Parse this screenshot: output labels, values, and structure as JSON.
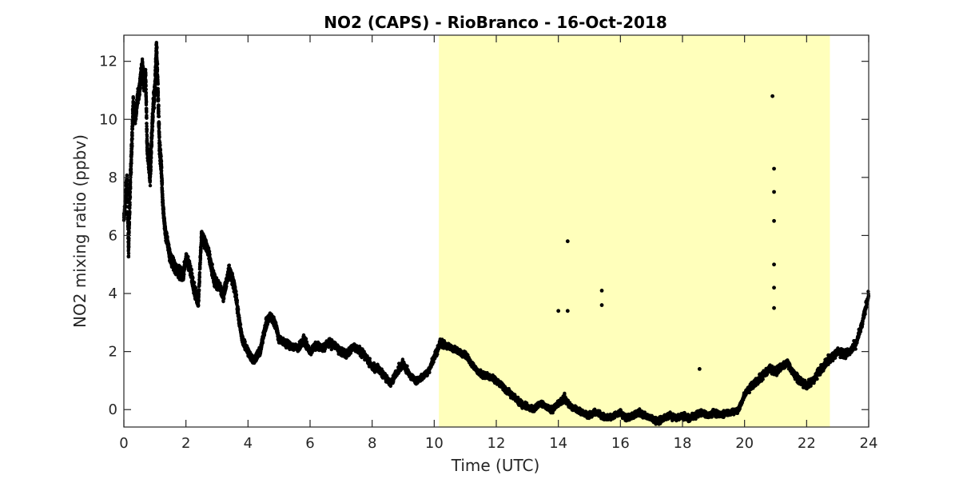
{
  "chart_data": {
    "type": "scatter",
    "title": "NO2 (CAPS) - RioBranco - 16-Oct-2018",
    "xlabel": "Time (UTC)",
    "ylabel": "NO2 mixing ratio (ppbv)",
    "xlim": [
      0,
      24
    ],
    "ylim": [
      -0.6,
      12.9
    ],
    "xticks": [
      0,
      2,
      4,
      6,
      8,
      10,
      12,
      14,
      16,
      18,
      20,
      22,
      24
    ],
    "yticks": [
      0,
      2,
      4,
      6,
      8,
      10,
      12
    ],
    "grid": false,
    "legend": "none",
    "highlight_span": [
      10.15,
      22.75
    ],
    "colors": {
      "points": "#000000",
      "highlight": "#ffffbb",
      "axes": "#262626",
      "background": "#ffffff"
    },
    "series": [
      {
        "x": [
          0.0,
          0.1,
          0.15,
          0.2,
          0.25,
          0.3,
          0.35,
          0.4,
          0.45,
          0.5,
          0.55,
          0.6,
          0.65,
          0.7,
          0.75,
          0.8,
          0.85,
          0.9,
          0.95,
          1.0,
          1.05,
          1.1,
          1.15,
          1.2,
          1.25,
          1.3,
          1.35,
          1.4,
          1.45,
          1.5,
          1.6,
          1.7,
          1.8,
          1.9,
          2.0,
          2.1,
          2.2,
          2.3,
          2.4,
          2.5,
          2.6,
          2.7,
          2.8,
          2.9,
          3.0,
          3.1,
          3.2,
          3.3,
          3.4,
          3.5,
          3.6,
          3.7,
          3.8,
          3.9,
          4.0,
          4.1,
          4.2,
          4.3,
          4.4,
          4.5,
          4.6,
          4.7,
          4.8,
          4.9,
          5.0,
          5.2,
          5.4,
          5.6,
          5.8,
          6.0,
          6.2,
          6.4,
          6.6,
          6.8,
          7.0,
          7.2,
          7.4,
          7.6,
          7.8,
          8.0,
          8.2,
          8.4,
          8.5,
          8.6,
          8.8,
          9.0,
          9.2,
          9.4,
          9.6,
          9.8,
          10.0,
          10.2,
          10.4,
          10.6,
          10.8,
          11.0,
          11.2,
          11.4,
          11.6,
          11.8,
          12.0,
          12.2,
          12.4,
          12.6,
          12.8,
          13.0,
          13.2,
          13.4,
          13.6,
          13.8,
          14.0,
          14.2,
          14.4,
          14.6,
          14.8,
          15.0,
          15.2,
          15.4,
          15.6,
          15.8,
          16.0,
          16.2,
          16.4,
          16.6,
          16.8,
          17.0,
          17.2,
          17.4,
          17.6,
          17.8,
          18.0,
          18.2,
          18.4,
          18.6,
          18.8,
          19.0,
          19.2,
          19.4,
          19.6,
          19.8,
          20.0,
          20.2,
          20.4,
          20.6,
          20.8,
          21.0,
          21.2,
          21.4,
          21.6,
          21.8,
          22.0,
          22.2,
          22.4,
          22.6,
          22.8,
          23.0,
          23.2,
          23.4,
          23.6,
          23.8,
          24.0
        ],
        "y": [
          6.5,
          8.0,
          5.5,
          7.5,
          9.0,
          10.5,
          10.0,
          10.3,
          10.8,
          11.0,
          11.5,
          11.9,
          11.2,
          11.6,
          9.0,
          8.5,
          8.0,
          9.5,
          10.5,
          11.0,
          12.5,
          11.0,
          9.0,
          8.5,
          7.2,
          6.5,
          6.0,
          5.8,
          5.5,
          5.2,
          5.0,
          4.8,
          4.7,
          4.6,
          5.2,
          5.0,
          4.5,
          4.0,
          3.7,
          6.0,
          5.8,
          5.5,
          5.0,
          4.5,
          4.3,
          4.2,
          3.9,
          4.4,
          4.8,
          4.5,
          4.0,
          3.2,
          2.5,
          2.2,
          2.0,
          1.8,
          1.7,
          1.9,
          2.0,
          2.6,
          3.0,
          3.2,
          3.1,
          2.9,
          2.4,
          2.3,
          2.2,
          2.1,
          2.4,
          2.0,
          2.2,
          2.1,
          2.3,
          2.2,
          2.0,
          1.9,
          2.2,
          2.0,
          1.8,
          1.5,
          1.4,
          1.2,
          1.0,
          0.9,
          1.3,
          1.6,
          1.2,
          1.0,
          1.1,
          1.3,
          1.8,
          2.3,
          2.2,
          2.1,
          2.0,
          1.9,
          1.6,
          1.3,
          1.2,
          1.1,
          1.0,
          0.8,
          0.6,
          0.4,
          0.2,
          0.1,
          0.0,
          0.2,
          0.1,
          0.0,
          0.2,
          0.4,
          0.1,
          0.0,
          -0.1,
          -0.2,
          -0.1,
          -0.2,
          -0.3,
          -0.2,
          -0.1,
          -0.3,
          -0.2,
          -0.1,
          -0.2,
          -0.3,
          -0.4,
          -0.3,
          -0.2,
          -0.3,
          -0.2,
          -0.3,
          -0.2,
          -0.1,
          -0.2,
          -0.1,
          -0.2,
          -0.1,
          -0.1,
          0.0,
          0.5,
          0.8,
          1.0,
          1.2,
          1.4,
          1.3,
          1.5,
          1.6,
          1.2,
          1.0,
          0.8,
          1.0,
          1.3,
          1.6,
          1.8,
          2.0,
          1.9,
          2.0,
          2.3,
          3.0,
          4.0
        ],
        "spread": [
          0.8,
          1.0,
          0.8,
          1.0,
          1.0,
          0.8,
          0.6,
          0.6,
          0.6,
          0.7,
          0.8,
          0.6,
          0.6,
          0.6,
          0.8,
          1.0,
          1.0,
          1.0,
          1.0,
          1.0,
          1.0,
          1.2,
          1.0,
          0.8,
          0.6,
          0.5,
          0.5,
          0.5,
          0.5,
          0.6,
          0.6,
          0.6,
          0.6,
          0.6,
          0.5,
          0.6,
          0.6,
          0.6,
          0.6,
          0.6,
          0.6,
          0.6,
          0.6,
          0.6,
          0.5,
          0.5,
          0.5,
          0.5,
          0.6,
          0.6,
          0.6,
          0.5,
          0.4,
          0.4,
          0.4,
          0.4,
          0.4,
          0.4,
          0.4,
          0.4,
          0.5,
          0.4,
          0.4,
          0.4,
          0.4,
          0.4,
          0.4,
          0.4,
          0.4,
          0.4,
          0.4,
          0.4,
          0.4,
          0.4,
          0.4,
          0.4,
          0.4,
          0.4,
          0.4,
          0.4,
          0.4,
          0.4,
          0.3,
          0.3,
          0.4,
          0.4,
          0.3,
          0.3,
          0.3,
          0.3,
          0.4,
          0.4,
          0.3,
          0.3,
          0.3,
          0.3,
          0.3,
          0.3,
          0.3,
          0.3,
          0.3,
          0.3,
          0.3,
          0.3,
          0.3,
          0.3,
          0.3,
          0.3,
          0.3,
          0.3,
          0.3,
          0.4,
          0.3,
          0.3,
          0.3,
          0.3,
          0.3,
          0.3,
          0.3,
          0.3,
          0.3,
          0.3,
          0.3,
          0.3,
          0.3,
          0.3,
          0.3,
          0.3,
          0.3,
          0.3,
          0.3,
          0.3,
          0.3,
          0.3,
          0.3,
          0.3,
          0.3,
          0.3,
          0.3,
          0.3,
          0.3,
          0.4,
          0.4,
          0.4,
          0.4,
          0.4,
          0.4,
          0.4,
          0.4,
          0.4,
          0.4,
          0.4,
          0.4,
          0.4,
          0.4,
          0.4,
          0.4,
          0.4,
          0.4,
          0.4,
          0.4,
          0.5,
          0.5
        ]
      }
    ],
    "spikes": [
      {
        "x": 14.3,
        "y": 5.8
      },
      {
        "x": 15.4,
        "y": 4.1
      },
      {
        "x": 15.4,
        "y": 3.6
      },
      {
        "x": 14.0,
        "y": 3.4
      },
      {
        "x": 14.3,
        "y": 3.4
      },
      {
        "x": 18.55,
        "y": 1.4
      },
      {
        "x": 20.9,
        "y": 10.8
      },
      {
        "x": 20.95,
        "y": 8.3
      },
      {
        "x": 20.95,
        "y": 7.5
      },
      {
        "x": 20.95,
        "y": 6.5
      },
      {
        "x": 20.95,
        "y": 5.0
      },
      {
        "x": 20.95,
        "y": 4.2
      },
      {
        "x": 20.95,
        "y": 3.5
      }
    ]
  }
}
